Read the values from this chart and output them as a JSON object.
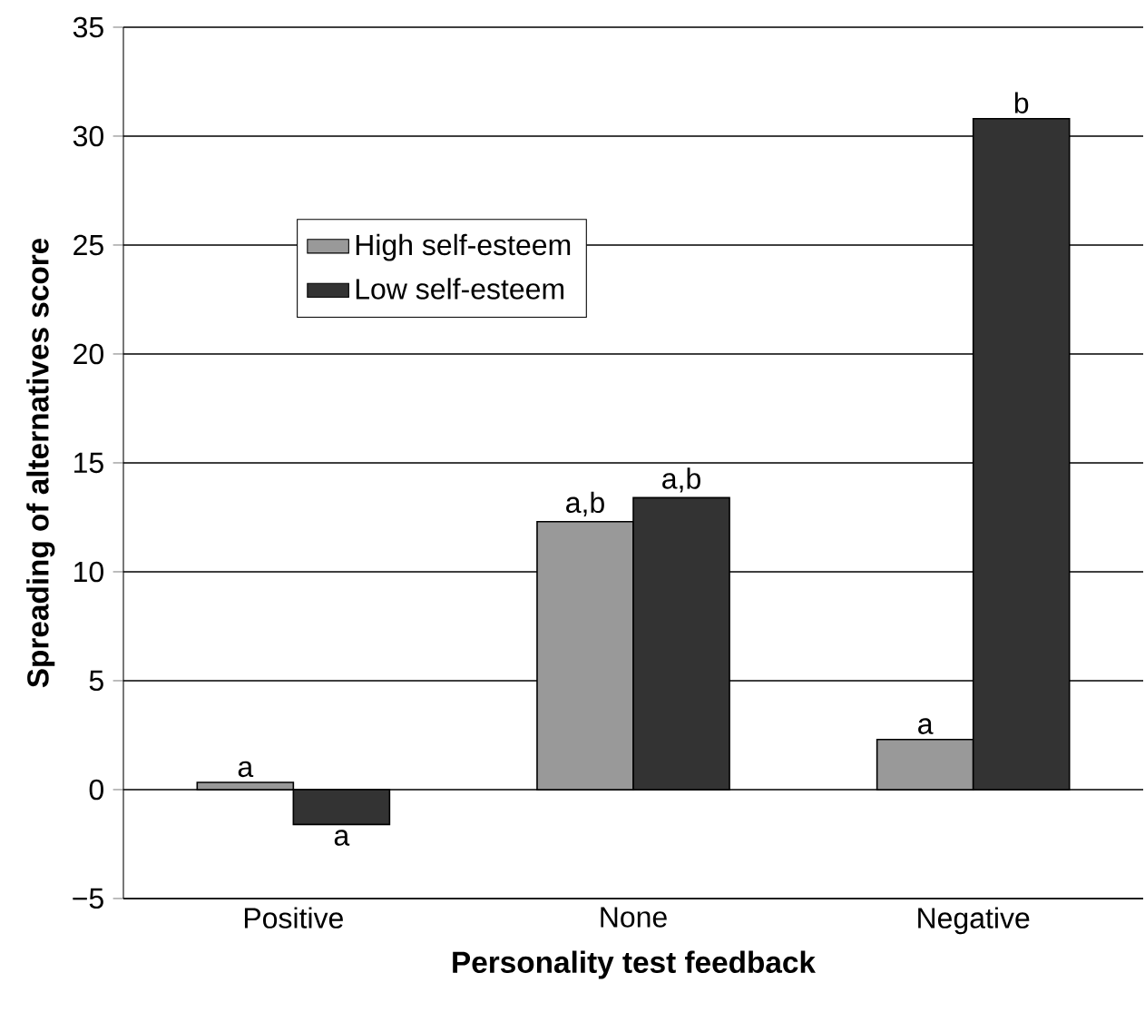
{
  "chart_data": {
    "type": "bar",
    "xlabel": "Personality test feedback",
    "ylabel": "Spreading of alternatives score",
    "categories": [
      "Positive",
      "None",
      "Negative"
    ],
    "series": [
      {
        "name": "High self-esteem",
        "color": "#999999",
        "values": [
          0.33,
          12.3,
          2.3
        ]
      },
      {
        "name": "Low self-esteem",
        "color": "#333333",
        "values": [
          -1.6,
          13.4,
          30.8
        ]
      }
    ],
    "ylim": [
      -5,
      35
    ],
    "yticks": [
      {
        "value": -5,
        "label": "−5"
      },
      0,
      5,
      10,
      15,
      20,
      25,
      30,
      35
    ],
    "grid": "y",
    "legend": "top left",
    "annotations": [
      {
        "text": "a",
        "x": "Positive",
        "y": 0.33
      },
      {
        "text": "a",
        "x": "Positive",
        "y": -1.6
      },
      {
        "text": "a,b",
        "x": "None",
        "y": 12.3
      },
      {
        "text": "a,b",
        "x": "None",
        "y": 13.4
      },
      {
        "text": "a",
        "x": "Negative",
        "y": 2.3
      },
      {
        "text": "b",
        "x": "Negative",
        "y": 30.8
      }
    ]
  }
}
